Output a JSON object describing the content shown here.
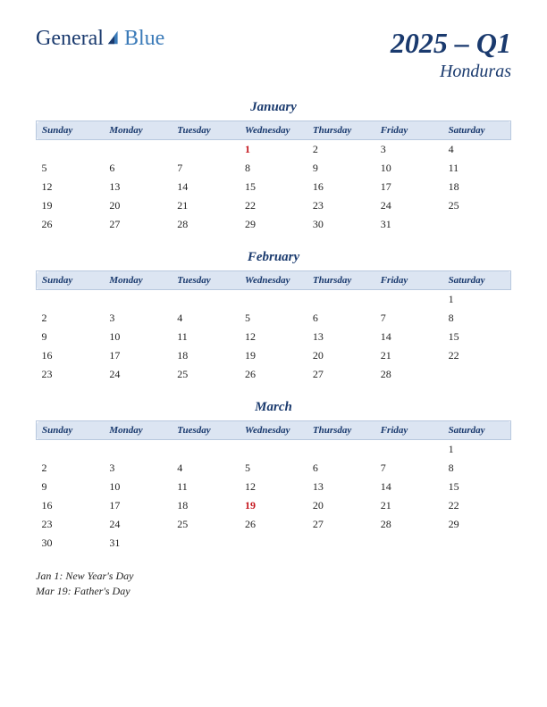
{
  "logo": {
    "text1": "General",
    "text2": "Blue"
  },
  "header": {
    "period": "2025 – Q1",
    "country": "Honduras"
  },
  "day_headers": [
    "Sunday",
    "Monday",
    "Tuesday",
    "Wednesday",
    "Thursday",
    "Friday",
    "Saturday"
  ],
  "months": [
    {
      "name": "January",
      "weeks": [
        [
          "",
          "",
          "",
          "1",
          "2",
          "3",
          "4"
        ],
        [
          "5",
          "6",
          "7",
          "8",
          "9",
          "10",
          "11"
        ],
        [
          "12",
          "13",
          "14",
          "15",
          "16",
          "17",
          "18"
        ],
        [
          "19",
          "20",
          "21",
          "22",
          "23",
          "24",
          "25"
        ],
        [
          "26",
          "27",
          "28",
          "29",
          "30",
          "31",
          ""
        ]
      ],
      "holidays_idx": [
        [
          0,
          3
        ]
      ]
    },
    {
      "name": "February",
      "weeks": [
        [
          "",
          "",
          "",
          "",
          "",
          "",
          "1"
        ],
        [
          "2",
          "3",
          "4",
          "5",
          "6",
          "7",
          "8"
        ],
        [
          "9",
          "10",
          "11",
          "12",
          "13",
          "14",
          "15"
        ],
        [
          "16",
          "17",
          "18",
          "19",
          "20",
          "21",
          "22"
        ],
        [
          "23",
          "24",
          "25",
          "26",
          "27",
          "28",
          ""
        ]
      ],
      "holidays_idx": []
    },
    {
      "name": "March",
      "weeks": [
        [
          "",
          "",
          "",
          "",
          "",
          "",
          "1"
        ],
        [
          "2",
          "3",
          "4",
          "5",
          "6",
          "7",
          "8"
        ],
        [
          "9",
          "10",
          "11",
          "12",
          "13",
          "14",
          "15"
        ],
        [
          "16",
          "17",
          "18",
          "19",
          "20",
          "21",
          "22"
        ],
        [
          "23",
          "24",
          "25",
          "26",
          "27",
          "28",
          "29"
        ],
        [
          "30",
          "31",
          "",
          "",
          "",
          "",
          ""
        ]
      ],
      "holidays_idx": [
        [
          3,
          3
        ]
      ]
    }
  ],
  "holiday_list": [
    "Jan 1: New Year's Day",
    "Mar 19: Father's Day"
  ],
  "colors": {
    "header_bg": "#dce5f2",
    "brand": "#1a3a6e",
    "holiday": "#c4151c"
  }
}
